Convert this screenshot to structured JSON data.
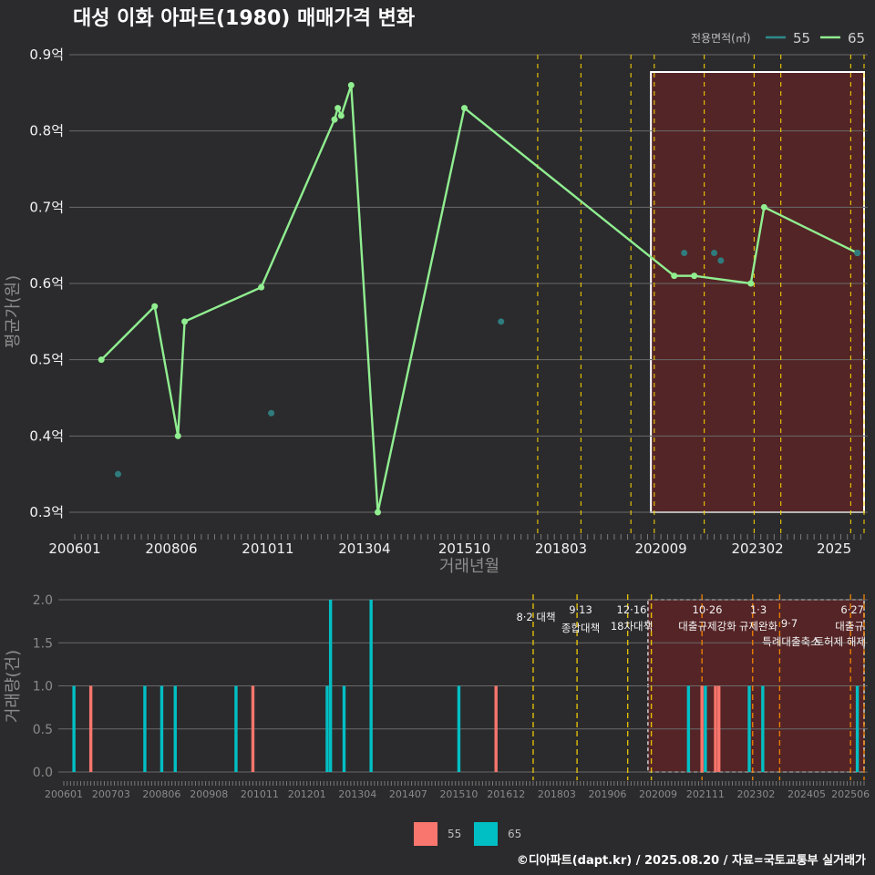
{
  "title": "대성 이화 아파트(1980) 매매가격 변화",
  "caption": "©디아파트(dapt.kr) / 2025.08.20 / 자료=국토교통부 실거래가",
  "colors": {
    "s55": "#f8766d",
    "s65": "#00bfc4",
    "line65": "#90ee90",
    "dot55": "#2f7b7d",
    "highlight": "#5a2426",
    "event": "#ffd700"
  },
  "chart_data": [
    {
      "type": "line",
      "title": "대성 이화 아파트(1980) 매매가격 변화",
      "xlabel": "거래년월",
      "ylabel": "평균가(원)",
      "x_ticks": [
        "200601",
        "200806",
        "201011",
        "201304",
        "201510",
        "201803",
        "202009",
        "202302",
        "2025"
      ],
      "y_ticks": [
        "0.3억",
        "0.4억",
        "0.5억",
        "0.6억",
        "0.7억",
        "0.8억",
        "0.9억"
      ],
      "ylim": [
        0.28,
        0.92
      ],
      "legend_title": "전용면적(㎡)",
      "legend": [
        "55",
        "65"
      ],
      "series": [
        {
          "name": "65",
          "type": "line",
          "points": [
            [
              "2006-09",
              0.5
            ],
            [
              "2008-01",
              0.57
            ],
            [
              "2008-08",
              0.4
            ],
            [
              "2008-10",
              0.55
            ],
            [
              "2010-09",
              0.595
            ],
            [
              "2012-07",
              0.815
            ],
            [
              "2012-08",
              0.83
            ],
            [
              "2012-09",
              0.82
            ],
            [
              "2012-12",
              0.86
            ],
            [
              "2013-08",
              0.3
            ],
            [
              "2015-10",
              0.83
            ],
            [
              "2021-01",
              0.61
            ],
            [
              "2021-07",
              0.61
            ],
            [
              "2022-12",
              0.6
            ],
            [
              "2023-04",
              0.7
            ],
            [
              "2025-08",
              0.64
            ]
          ]
        },
        {
          "name": "55",
          "type": "scatter",
          "points": [
            [
              "2007-02",
              0.35
            ],
            [
              "2010-12",
              0.43
            ],
            [
              "2016-09",
              0.55
            ],
            [
              "2021-04",
              0.64
            ],
            [
              "2022-01",
              0.64
            ],
            [
              "2022-03",
              0.63
            ],
            [
              "2025-08",
              0.64
            ]
          ]
        }
      ],
      "events": [
        "2017-08",
        "2018-09",
        "2019-12",
        "2020-07",
        "2021-10",
        "2023-01",
        "2023-09",
        "2025-06",
        "2025-10"
      ],
      "highlight_range": [
        "2020-06",
        "2025-10"
      ]
    },
    {
      "type": "bar",
      "xlabel": "",
      "ylabel": "거래량(건)",
      "x_ticks": [
        "200601",
        "200703",
        "200806",
        "200908",
        "201011",
        "201201",
        "201304",
        "201407",
        "201510",
        "201612",
        "201803",
        "201906",
        "202009",
        "202111",
        "202302",
        "202405",
        "202506"
      ],
      "y_ticks": [
        "0.0",
        "0.5",
        "1.0",
        "1.5",
        "2.0"
      ],
      "ylim": [
        0,
        2
      ],
      "legend": [
        "55",
        "65"
      ],
      "series": [
        {
          "name": "55",
          "bars": [
            [
              "2006-09",
              1
            ],
            [
              "2010-09",
              1
            ],
            [
              "2016-09",
              1
            ],
            [
              "2021-10",
              1
            ],
            [
              "2022-02",
              1
            ],
            [
              "2022-03",
              1
            ]
          ]
        },
        {
          "name": "65",
          "bars": [
            [
              "2006-04",
              1
            ],
            [
              "2008-01",
              1
            ],
            [
              "2008-06",
              1
            ],
            [
              "2008-10",
              1
            ],
            [
              "2010-04",
              1
            ],
            [
              "2012-07",
              1
            ],
            [
              "2012-08",
              2
            ],
            [
              "2012-12",
              1
            ],
            [
              "2013-08",
              2
            ],
            [
              "2015-10",
              1
            ],
            [
              "2021-06",
              1
            ],
            [
              "2021-11",
              1
            ],
            [
              "2022-12",
              1
            ],
            [
              "2023-04",
              1
            ],
            [
              "2025-08",
              1
            ]
          ]
        }
      ],
      "events": [
        {
          "date": "2017-08",
          "label1": "8·2 대책",
          "label2": ""
        },
        {
          "date": "2018-09",
          "label1": "9·13",
          "label2": "종합대책"
        },
        {
          "date": "2019-12",
          "label1": "12·16",
          "label2": "18차대책"
        },
        {
          "date": "2020-07",
          "label1": "",
          "label2": ""
        },
        {
          "date": "2021-10",
          "label1": "10·26",
          "label2": "대출규제강화"
        },
        {
          "date": "2023-01",
          "label1": "1·3",
          "label2": "규제완화"
        },
        {
          "date": "2023-09",
          "label1": "9·7",
          "label2": "특례대출축소"
        },
        {
          "date": "2025-06",
          "label1": "6·27",
          "label2": "대출규"
        },
        {
          "date": "2025-10",
          "label1": "",
          "label2": "토허제 해제"
        }
      ],
      "highlight_range": [
        "2020-06",
        "2025-10"
      ]
    }
  ]
}
